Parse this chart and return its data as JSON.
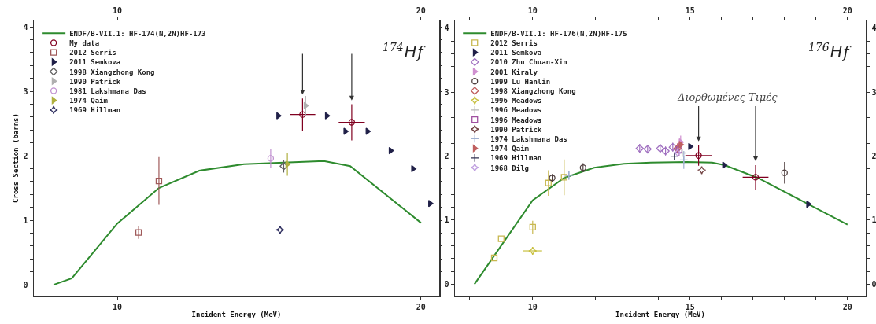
{
  "chart_data": [
    {
      "type": "scatter",
      "xlabel": "Incident Energy (MeV)",
      "ylabel": "Cross Section (barns)",
      "legend": "top left",
      "xlim": [
        7.25,
        20.6
      ],
      "xticks": [
        {
          "value": 8.5,
          "label": null
        },
        10,
        20
      ],
      "x2lim": [
        7.25,
        20.6
      ],
      "x2ticks": [
        {
          "value": 8.5,
          "label": null
        },
        10,
        20
      ],
      "ylim": [
        -0.17,
        4.1
      ],
      "yticks": [
        0,
        {
          "value": 0.2,
          "label": null
        },
        {
          "value": 0.4,
          "label": null
        },
        {
          "value": 0.6,
          "label": null
        },
        {
          "value": 0.8,
          "label": null
        },
        1,
        {
          "value": 1.2,
          "label": null
        },
        {
          "value": 1.4,
          "label": null
        },
        {
          "value": 1.6,
          "label": null
        },
        {
          "value": 1.8,
          "label": null
        },
        2,
        {
          "value": 2.2,
          "label": null
        },
        {
          "value": 2.4,
          "label": null
        },
        {
          "value": 2.6,
          "label": null
        },
        {
          "value": 2.8,
          "label": null
        },
        3,
        {
          "value": 3.2,
          "label": null
        },
        {
          "value": 3.4,
          "label": null
        },
        {
          "value": 3.6,
          "label": null
        },
        {
          "value": 3.8,
          "label": null
        },
        4
      ],
      "annotations": [
        "$^{174}$Hf"
      ],
      "series": [
        {
          "name": "ENDF/B-VII.1: HF-174(N,2N)HF-173",
          "type": "line",
          "color": "#2e8b2e",
          "x": [
            7.9,
            8.5,
            10,
            11.37,
            12.7,
            14.17,
            16.8,
            17.67,
            20
          ],
          "values": [
            0,
            0.1,
            0.95,
            1.5,
            1.77,
            1.87,
            1.92,
            1.84,
            0.96
          ]
        },
        {
          "name": "My data",
          "color": "#800020",
          "marker": "circle",
          "x": [
            16.1,
            17.72
          ],
          "values": [
            2.64,
            2.52
          ],
          "errors": [
            0.25,
            0.28
          ],
          "xerrors": [
            0.42,
            0.43
          ]
        },
        {
          "name": "2012 Serris",
          "color": "#a05a5a",
          "marker": "square",
          "x": [
            10.7,
            11.37
          ],
          "values": [
            0.81,
            1.61
          ],
          "errors": [
            0.1,
            0.37
          ]
        },
        {
          "name": "2011 Semkova",
          "color": "#202048",
          "marker": "triangle",
          "x": [
            15.3,
            16.9,
            17.51,
            18.24,
            19.0,
            19.74,
            20.3
          ],
          "values": [
            2.62,
            2.62,
            2.38,
            2.38,
            2.08,
            1.8,
            1.26
          ]
        },
        {
          "name": "1998 Xiangzhong Kong",
          "color": "#606060",
          "marker": "diamond",
          "x": [
            15.48
          ],
          "values": [
            1.84
          ],
          "errors": [
            0.1
          ]
        },
        {
          "name": "1990 Patrick",
          "color": "#b0b0b0",
          "marker": "triangle",
          "x": [
            16.2
          ],
          "values": [
            2.78
          ],
          "errors": [
            0.15
          ]
        },
        {
          "name": "1981 Lakshmana Das",
          "color": "#c090d0",
          "marker": "circle",
          "x": [
            15.05
          ],
          "values": [
            1.96
          ],
          "errors": [
            0.15
          ]
        },
        {
          "name": "1974 Qaim",
          "color": "#b0b040",
          "marker": "triangle",
          "x": [
            15.6
          ],
          "values": [
            1.87
          ],
          "errors": [
            0.18
          ]
        },
        {
          "name": "1969 Hillman",
          "color": "#303060",
          "marker": "star",
          "x": [
            15.36
          ],
          "values": [
            0.85
          ]
        }
      ]
    },
    {
      "type": "scatter",
      "xlabel": "Incident Energy (MeV)",
      "legend": "top left",
      "xlim": [
        7.53,
        20.58
      ],
      "xticks": [
        {
          "value": 8,
          "label": null
        },
        {
          "value": 9,
          "label": null
        },
        10,
        {
          "value": 11,
          "label": null
        },
        {
          "value": 12,
          "label": null
        },
        {
          "value": 13,
          "label": null
        },
        {
          "value": 14,
          "label": null
        },
        15,
        {
          "value": 16,
          "label": null
        },
        {
          "value": 17,
          "label": null
        },
        {
          "value": 18,
          "label": null
        },
        {
          "value": 19,
          "label": null
        },
        20
      ],
      "x2lim": [
        7.53,
        20.58
      ],
      "x2ticks": [
        {
          "value": 8,
          "label": null
        },
        {
          "value": 9,
          "label": null
        },
        10,
        {
          "value": 11,
          "label": null
        },
        {
          "value": 12,
          "label": null
        },
        {
          "value": 13,
          "label": null
        },
        {
          "value": 14,
          "label": null
        },
        15,
        {
          "value": 16,
          "label": null
        },
        {
          "value": 17,
          "label": null
        },
        {
          "value": 18,
          "label": null
        },
        {
          "value": 19,
          "label": null
        },
        20
      ],
      "ylim": [
        -0.18,
        4.12
      ],
      "yticks": [
        0,
        {
          "value": 0.2,
          "label": null
        },
        {
          "value": 0.4,
          "label": null
        },
        {
          "value": 0.6,
          "label": null
        },
        {
          "value": 0.8,
          "label": null
        },
        1,
        {
          "value": 1.2,
          "label": null
        },
        {
          "value": 1.4,
          "label": null
        },
        {
          "value": 1.6,
          "label": null
        },
        {
          "value": 1.8,
          "label": null
        },
        2,
        {
          "value": 2.2,
          "label": null
        },
        {
          "value": 2.4,
          "label": null
        },
        {
          "value": 2.6,
          "label": null
        },
        {
          "value": 2.8,
          "label": null
        },
        3,
        {
          "value": 3.2,
          "label": null
        },
        {
          "value": 3.4,
          "label": null
        },
        {
          "value": 3.6,
          "label": null
        },
        {
          "value": 3.8,
          "label": null
        },
        4
      ],
      "y2lim": [
        -0.18,
        4.12
      ],
      "y2ticks": [
        0,
        {
          "value": 0.2,
          "label": null
        },
        {
          "value": 0.4,
          "label": null
        },
        {
          "value": 0.6,
          "label": null
        },
        {
          "value": 0.8,
          "label": null
        },
        1,
        {
          "value": 1.2,
          "label": null
        },
        {
          "value": 1.4,
          "label": null
        },
        {
          "value": 1.6,
          "label": null
        },
        {
          "value": 1.8,
          "label": null
        },
        2,
        {
          "value": 2.2,
          "label": null
        },
        {
          "value": 2.4,
          "label": null
        },
        {
          "value": 2.6,
          "label": null
        },
        {
          "value": 2.8,
          "label": null
        },
        3,
        {
          "value": 3.2,
          "label": null
        },
        {
          "value": 3.4,
          "label": null
        },
        {
          "value": 3.6,
          "label": null
        },
        {
          "value": 3.8,
          "label": null
        },
        4
      ],
      "annotations": [
        "$^{176}$Hf",
        "Διορθωμένες Τιμές"
      ],
      "series": [
        {
          "name": "ENDF/B-VII.1: HF-176(N,2N)HF-175",
          "type": "line",
          "color": "#2e8b2e",
          "x": [
            8.15,
            10,
            11,
            11.95,
            12.9,
            13.75,
            14.9,
            15.7,
            16.1,
            17.15,
            20
          ],
          "values": [
            0,
            1.31,
            1.66,
            1.82,
            1.88,
            1.9,
            1.91,
            1.9,
            1.86,
            1.66,
            0.93
          ]
        },
        {
          "color": "#800020",
          "marker": "circle",
          "x": [
            15.27,
            17.08
          ],
          "values": [
            2.01,
            1.67
          ],
          "errors": [
            0.16,
            0.19
          ],
          "xerrors": [
            0.42,
            0.41
          ]
        },
        {
          "name": "2012 Serris",
          "color": "#c8b850",
          "marker": "square",
          "x": [
            8.78,
            9.0,
            10.0,
            10.5,
            11.0
          ],
          "values": [
            0.41,
            0.71,
            0.89,
            1.58,
            1.67
          ],
          "errors": [
            null,
            null,
            0.1,
            0.2,
            0.28
          ]
        },
        {
          "name": "2011 Semkova",
          "color": "#202048",
          "marker": "triangle",
          "x": [
            15.0,
            16.08,
            18.75
          ],
          "values": [
            2.15,
            1.86,
            1.25
          ]
        },
        {
          "name": "2010 Zhu Chuan-Xin",
          "color": "#a070c0",
          "marker": "diamond",
          "x": [
            13.4,
            13.65,
            14.05,
            14.22,
            14.45
          ],
          "values": [
            2.12,
            2.11,
            2.12,
            2.08,
            2.14
          ],
          "errors": [
            0.07,
            0.07,
            0.07,
            0.07,
            0.07
          ]
        },
        {
          "name": "2001 Kiraly",
          "color": "#d090d0",
          "marker": "triangle",
          "x": [
            14.7
          ],
          "values": [
            2.22
          ],
          "errors": [
            0.1
          ]
        },
        {
          "name": "1999 Lu Hanlin",
          "color": "#504040",
          "marker": "circle",
          "x": [
            10.62,
            11.6,
            18.0
          ],
          "values": [
            1.66,
            1.82,
            1.74
          ],
          "errors": [
            0.06,
            0.07,
            0.17
          ]
        },
        {
          "name": "1998 Xiangzhong Kong",
          "color": "#c06060",
          "marker": "diamond",
          "x": [
            14.6
          ],
          "values": [
            2.12
          ],
          "errors": [
            0.08
          ]
        },
        {
          "name": "1996 Meadows",
          "color": "#c8c040",
          "marker": "star",
          "x": [
            10.0
          ],
          "values": [
            0.52
          ],
          "xerrors": [
            0.3
          ]
        },
        {
          "name": "1996 Meadows",
          "color": "#b8b8b8",
          "marker": "cross",
          "x": [
            14.75
          ],
          "values": [
            2.05
          ]
        },
        {
          "name": "1996 Meadows",
          "color": "#a050a0",
          "marker": "square",
          "x": [
            14.65
          ],
          "values": [
            2.1
          ],
          "errors": [
            0.1
          ]
        },
        {
          "name": "1990 Patrick",
          "color": "#704040",
          "marker": "star",
          "x": [
            15.37
          ],
          "values": [
            1.78
          ]
        },
        {
          "name": "1974 Lakshmana Das",
          "color": "#a0b0d0",
          "marker": "cross",
          "x": [
            11.15,
            14.8
          ],
          "values": [
            1.7,
            1.94
          ],
          "errors": [
            0.07,
            0.14
          ]
        },
        {
          "name": "1974 Qaim",
          "color": "#c06060",
          "marker": "triangle",
          "x": [
            14.7
          ],
          "values": [
            2.18
          ]
        },
        {
          "name": "1969 Hillman",
          "color": "#303050",
          "marker": "cross",
          "x": [
            14.5
          ],
          "values": [
            2.0
          ]
        },
        {
          "name": "1968 Dilg",
          "color": "#c0a0e0",
          "marker": "star",
          "x": [
            14.6
          ],
          "values": [
            2.05
          ]
        }
      ]
    }
  ]
}
